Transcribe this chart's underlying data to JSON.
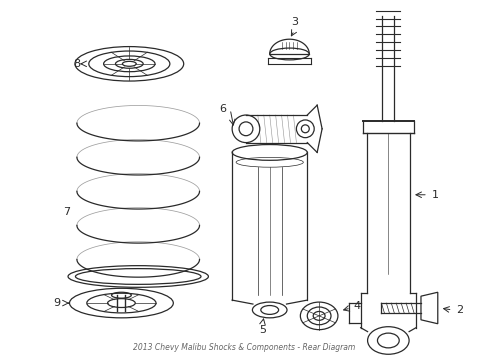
{
  "title": "2013 Chevy Malibu Shocks & Components - Rear Diagram",
  "background_color": "#ffffff",
  "line_color": "#2a2a2a",
  "fig_width": 4.89,
  "fig_height": 3.6,
  "dpi": 100
}
